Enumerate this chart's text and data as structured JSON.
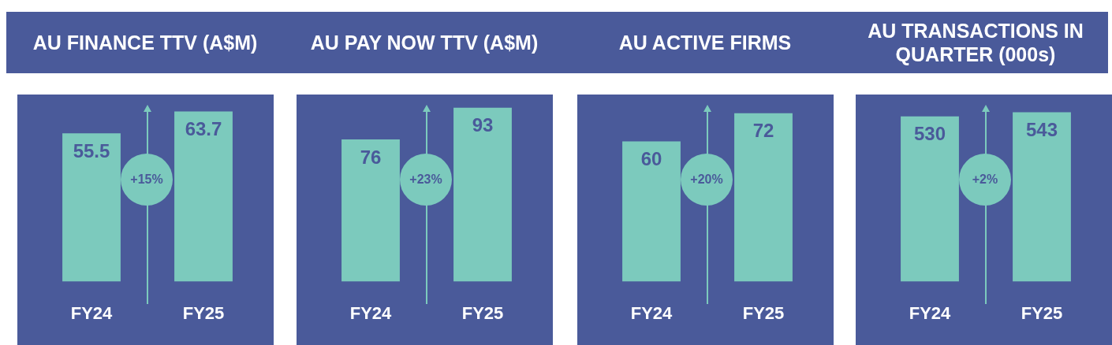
{
  "chart_data": [
    {
      "type": "bar",
      "title": "AU FINANCE TTV (A$M)",
      "categories": [
        "FY24",
        "FY25"
      ],
      "values": [
        55.5,
        63.7
      ],
      "color": "#7ccabd",
      "data_labels": true,
      "annotations": [
        "+15%"
      ]
    },
    {
      "type": "bar",
      "title": "AU PAY NOW TTV (A$M)",
      "categories": [
        "FY24",
        "FY25"
      ],
      "values": [
        76,
        93
      ],
      "color": "#7ccabd",
      "data_labels": true,
      "annotations": [
        "+23%"
      ]
    },
    {
      "type": "bar",
      "title": "AU ACTIVE FIRMS",
      "categories": [
        "FY24",
        "FY25"
      ],
      "values": [
        60,
        72
      ],
      "color": "#7ccabd",
      "data_labels": true,
      "annotations": [
        "+20%"
      ]
    },
    {
      "type": "bar",
      "title": "AU TRANSACTIONS IN QUARTER (000s)",
      "categories": [
        "FY24",
        "FY25"
      ],
      "values": [
        530,
        543
      ],
      "color": "#7ccabd",
      "data_labels": true,
      "annotations": [
        "+2%"
      ]
    }
  ]
}
